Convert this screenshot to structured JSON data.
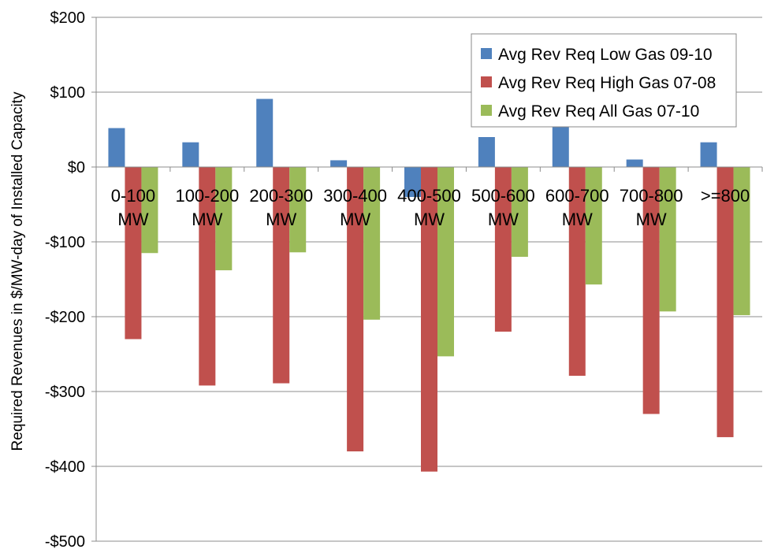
{
  "chart_data": {
    "type": "bar",
    "title": "",
    "xlabel": "",
    "ylabel": "Required Revenues in $/MW-day of Installed Capacity",
    "ylim": [
      -500,
      200
    ],
    "yticks": [
      200,
      100,
      0,
      -100,
      -200,
      -300,
      -400,
      -500
    ],
    "ytick_labels": [
      "$200",
      "$100",
      "$0",
      "-$100",
      "-$200",
      "-$300",
      "-$400",
      "-$500"
    ],
    "grid": true,
    "legend_position": "top-right",
    "categories": [
      "0-100 MW",
      "100-200 MW",
      "200-300 MW",
      "300-400 MW",
      "400-500 MW",
      "500-600 MW",
      "600-700 MW",
      "700-800 MW",
      ">=800"
    ],
    "category_labels": [
      [
        "0-100",
        "MW"
      ],
      [
        "100-200",
        "MW"
      ],
      [
        "200-300",
        "MW"
      ],
      [
        "300-400",
        "MW"
      ],
      [
        "400-500",
        "MW"
      ],
      [
        "500-600",
        "MW"
      ],
      [
        "600-700",
        "MW"
      ],
      [
        "700-800",
        "MW"
      ],
      [
        ">=800"
      ]
    ],
    "series": [
      {
        "name": "Avg Rev Req Low Gas 09-10",
        "color": "#4f81bd",
        "values": [
          52,
          33,
          91,
          9,
          -40,
          40,
          55,
          10,
          33
        ]
      },
      {
        "name": "Avg Rev Req High Gas 07-08",
        "color": "#c0504d",
        "values": [
          -230,
          -292,
          -289,
          -380,
          -407,
          -220,
          -279,
          -330,
          -361
        ]
      },
      {
        "name": "Avg Rev Req All Gas 07-10",
        "color": "#9bbb59",
        "values": [
          -115,
          -138,
          -114,
          -204,
          -253,
          -120,
          -157,
          -193,
          -198
        ]
      }
    ]
  }
}
